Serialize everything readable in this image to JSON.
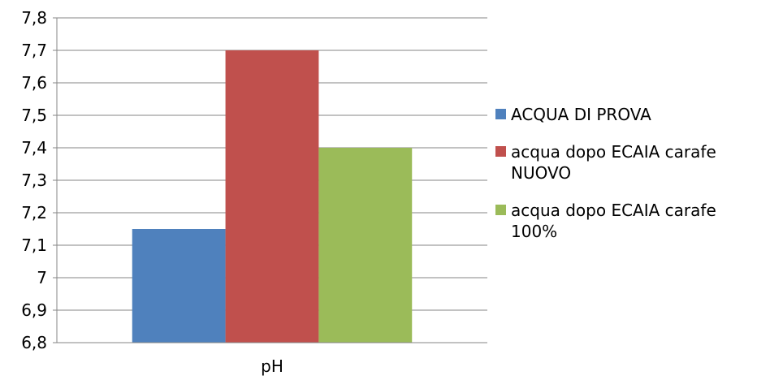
{
  "chart_data": {
    "type": "bar",
    "categories": [
      "pH"
    ],
    "series": [
      {
        "name": "ACQUA DI PROVA",
        "values": [
          7.15
        ],
        "color": "#4f81bd"
      },
      {
        "name": "acqua dopo ECAIA carafe\nNUOVO",
        "values": [
          7.7
        ],
        "color": "#c0504d"
      },
      {
        "name": "acqua dopo ECAIA carafe\n100%",
        "values": [
          7.4
        ],
        "color": "#9bbb59"
      }
    ],
    "y_ticks": [
      "6,8",
      "6,9",
      "7",
      "7,1",
      "7,2",
      "7,3",
      "7,4",
      "7,5",
      "7,6",
      "7,7",
      "7,8"
    ],
    "ylim": [
      6.8,
      7.8
    ],
    "grid": true,
    "legend": "right",
    "gridline_color": "#868686"
  }
}
